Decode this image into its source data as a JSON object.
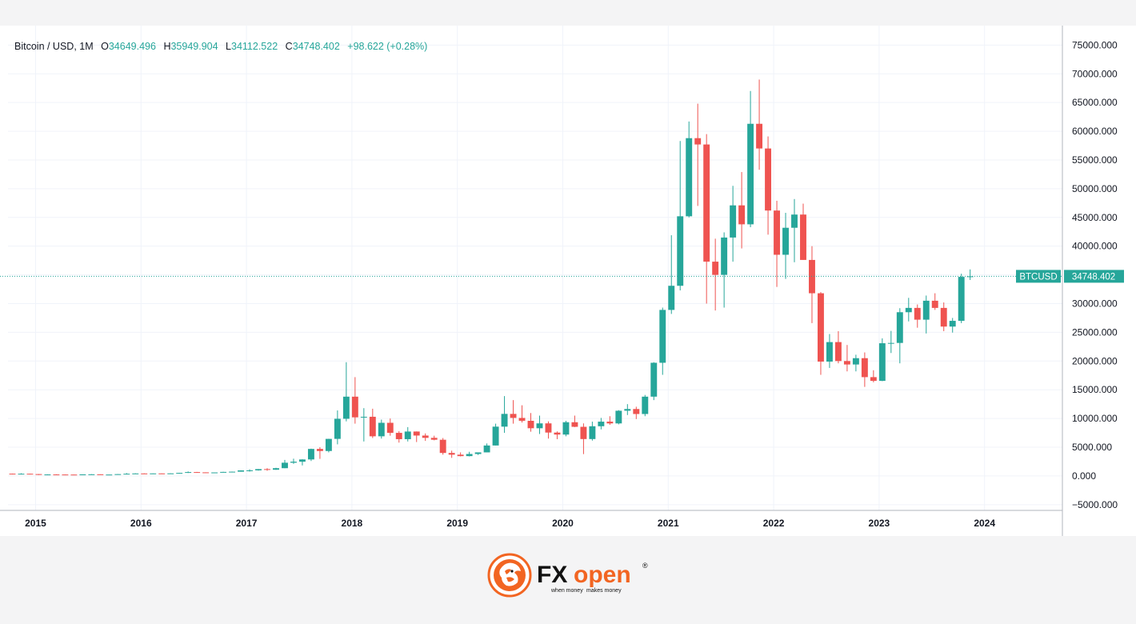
{
  "legend": {
    "symbol": "Bitcoin / USD, 1M",
    "o_label": "O",
    "o_value": "34649.496",
    "h_label": "H",
    "h_value": "35949.904",
    "l_label": "L",
    "l_value": "34112.522",
    "c_label": "C",
    "c_value": "34748.402",
    "change": "+98.622 (+0.28%)"
  },
  "price_tag": {
    "symbol": "BTCUSD",
    "value": "34748.402"
  },
  "colors": {
    "up": "#26a69a",
    "down": "#ef5350",
    "grid": "#f0f3fa",
    "axis_text": "#131722",
    "tag_bg": "#26a69a",
    "brand_orange": "#f26522",
    "brand_black": "#111111"
  },
  "brand": {
    "name_part1": "FX",
    "name_part2": "open",
    "registered": "®",
    "tagline_1": "when money",
    "tagline_2": "makes money",
    "icon": "lion-head-logo-icon"
  },
  "chart_data": {
    "type": "candlestick",
    "title": "",
    "symbol": "Bitcoin / USD",
    "interval": "1M",
    "last_price": 34748.402,
    "grid": true,
    "y_axis": {
      "position": "right",
      "ylim": [
        -6000,
        77000
      ],
      "ticks": [
        -5000,
        0,
        5000,
        10000,
        15000,
        20000,
        25000,
        30000,
        35000,
        40000,
        45000,
        50000,
        55000,
        60000,
        65000,
        70000,
        75000
      ],
      "tick_labels": [
        "−5000.000",
        "0.000",
        "5000.000",
        "10000.000",
        "15000.000",
        "20000.000",
        "25000.000",
        "30000.000",
        "35000.000",
        "40000.000",
        "45000.000",
        "50000.000",
        "55000.000",
        "60000.000",
        "65000.000",
        "70000.000",
        "75000.000"
      ]
    },
    "x_axis": {
      "start": "2014-10",
      "end": "2024-09",
      "tick_labels": [
        "2015",
        "2016",
        "2017",
        "2018",
        "2019",
        "2020",
        "2021",
        "2022",
        "2023",
        "2024"
      ]
    },
    "candles": [
      [
        "2014-10",
        390,
        410,
        300,
        330
      ],
      [
        "2014-11",
        330,
        460,
        310,
        380
      ],
      [
        "2014-12",
        380,
        390,
        300,
        320
      ],
      [
        "2015-01",
        320,
        330,
        160,
        220
      ],
      [
        "2015-02",
        220,
        280,
        210,
        255
      ],
      [
        "2015-03",
        255,
        300,
        240,
        245
      ],
      [
        "2015-04",
        245,
        260,
        215,
        235
      ],
      [
        "2015-05",
        235,
        250,
        225,
        230
      ],
      [
        "2015-06",
        230,
        270,
        220,
        265
      ],
      [
        "2015-07",
        265,
        315,
        255,
        285
      ],
      [
        "2015-08",
        285,
        290,
        200,
        230
      ],
      [
        "2015-09",
        230,
        245,
        225,
        237
      ],
      [
        "2015-10",
        237,
        330,
        235,
        315
      ],
      [
        "2015-11",
        315,
        500,
        300,
        378
      ],
      [
        "2015-12",
        378,
        465,
        350,
        430
      ],
      [
        "2016-01",
        430,
        460,
        360,
        368
      ],
      [
        "2016-02",
        368,
        440,
        365,
        437
      ],
      [
        "2016-03",
        437,
        440,
        400,
        416
      ],
      [
        "2016-04",
        416,
        470,
        415,
        448
      ],
      [
        "2016-05",
        448,
        550,
        440,
        530
      ],
      [
        "2016-06",
        530,
        780,
        520,
        670
      ],
      [
        "2016-07",
        670,
        700,
        600,
        624
      ],
      [
        "2016-08",
        624,
        630,
        540,
        575
      ],
      [
        "2016-09",
        575,
        615,
        570,
        610
      ],
      [
        "2016-10",
        610,
        720,
        605,
        700
      ],
      [
        "2016-11",
        700,
        760,
        690,
        742
      ],
      [
        "2016-12",
        742,
        980,
        740,
        963
      ],
      [
        "2017-01",
        963,
        1150,
        750,
        970
      ],
      [
        "2017-02",
        970,
        1200,
        920,
        1190
      ],
      [
        "2017-03",
        1190,
        1350,
        900,
        1080
      ],
      [
        "2017-04",
        1080,
        1420,
        1060,
        1350
      ],
      [
        "2017-05",
        1350,
        2790,
        1340,
        2300
      ],
      [
        "2017-06",
        2300,
        3000,
        2100,
        2480
      ],
      [
        "2017-07",
        2480,
        2900,
        1830,
        2870
      ],
      [
        "2017-08",
        2870,
        4750,
        2600,
        4700
      ],
      [
        "2017-09",
        4700,
        5000,
        2970,
        4340
      ],
      [
        "2017-10",
        4340,
        6470,
        4100,
        6450
      ],
      [
        "2017-11",
        6450,
        11400,
        5500,
        9950
      ],
      [
        "2017-12",
        9950,
        19800,
        9500,
        13800
      ],
      [
        "2018-01",
        13800,
        17200,
        9100,
        10200
      ],
      [
        "2018-02",
        10200,
        11800,
        6000,
        10300
      ],
      [
        "2018-03",
        10300,
        11700,
        6600,
        6900
      ],
      [
        "2018-04",
        6900,
        9800,
        6500,
        9250
      ],
      [
        "2018-05",
        9250,
        10000,
        7000,
        7500
      ],
      [
        "2018-06",
        7500,
        7800,
        5800,
        6400
      ],
      [
        "2018-07",
        6400,
        8500,
        6000,
        7730
      ],
      [
        "2018-08",
        7730,
        7750,
        5900,
        7030
      ],
      [
        "2018-09",
        7030,
        7400,
        6100,
        6630
      ],
      [
        "2018-10",
        6630,
        7000,
        6200,
        6300
      ],
      [
        "2018-11",
        6300,
        6600,
        3700,
        4000
      ],
      [
        "2018-12",
        4000,
        4400,
        3150,
        3700
      ],
      [
        "2019-01",
        3700,
        4100,
        3400,
        3450
      ],
      [
        "2019-02",
        3450,
        4200,
        3400,
        3820
      ],
      [
        "2019-03",
        3820,
        4100,
        3650,
        4100
      ],
      [
        "2019-04",
        4100,
        5650,
        4100,
        5300
      ],
      [
        "2019-05",
        5300,
        9100,
        5300,
        8580
      ],
      [
        "2019-06",
        8580,
        13900,
        7500,
        10800
      ],
      [
        "2019-07",
        10800,
        13200,
        9100,
        10100
      ],
      [
        "2019-08",
        10100,
        12300,
        9300,
        9600
      ],
      [
        "2019-09",
        9600,
        10950,
        7700,
        8300
      ],
      [
        "2019-10",
        8300,
        10500,
        7300,
        9150
      ],
      [
        "2019-11",
        9150,
        9500,
        6500,
        7550
      ],
      [
        "2019-12",
        7550,
        7750,
        6400,
        7200
      ],
      [
        "2020-01",
        7200,
        9600,
        6900,
        9350
      ],
      [
        "2020-02",
        9350,
        10500,
        8500,
        8550
      ],
      [
        "2020-03",
        8550,
        9150,
        3800,
        6420
      ],
      [
        "2020-04",
        6420,
        9450,
        6150,
        8650
      ],
      [
        "2020-05",
        8650,
        10100,
        8100,
        9450
      ],
      [
        "2020-06",
        9450,
        10400,
        8900,
        9140
      ],
      [
        "2020-07",
        9140,
        11450,
        8980,
        11350
      ],
      [
        "2020-08",
        11350,
        12500,
        10600,
        11650
      ],
      [
        "2020-09",
        11650,
        12050,
        9900,
        10780
      ],
      [
        "2020-10",
        10780,
        14100,
        10400,
        13800
      ],
      [
        "2020-11",
        13800,
        19800,
        13200,
        19700
      ],
      [
        "2020-12",
        19700,
        29300,
        17600,
        28900
      ],
      [
        "2021-01",
        28900,
        41900,
        28200,
        33100
      ],
      [
        "2021-02",
        33100,
        58300,
        32300,
        45200
      ],
      [
        "2021-03",
        45200,
        61700,
        45000,
        58800
      ],
      [
        "2021-04",
        58800,
        64800,
        47000,
        57700
      ],
      [
        "2021-05",
        57700,
        59500,
        30000,
        37300
      ],
      [
        "2021-06",
        37300,
        41300,
        28800,
        35000
      ],
      [
        "2021-07",
        35000,
        42400,
        29300,
        41500
      ],
      [
        "2021-08",
        41500,
        50500,
        37300,
        47100
      ],
      [
        "2021-09",
        47100,
        52900,
        39600,
        43800
      ],
      [
        "2021-10",
        43800,
        67000,
        43300,
        61300
      ],
      [
        "2021-11",
        61300,
        69000,
        53300,
        57000
      ],
      [
        "2021-12",
        57000,
        59100,
        42000,
        46200
      ],
      [
        "2022-01",
        46200,
        47900,
        32900,
        38500
      ],
      [
        "2022-02",
        38500,
        45800,
        34300,
        43200
      ],
      [
        "2022-03",
        43200,
        48200,
        37200,
        45500
      ],
      [
        "2022-04",
        45500,
        47400,
        37600,
        37600
      ],
      [
        "2022-05",
        37600,
        40000,
        26600,
        31800
      ],
      [
        "2022-06",
        31800,
        32000,
        17600,
        19900
      ],
      [
        "2022-07",
        19900,
        24700,
        18800,
        23300
      ],
      [
        "2022-08",
        23300,
        25200,
        19600,
        20000
      ],
      [
        "2022-09",
        20000,
        22800,
        18200,
        19400
      ],
      [
        "2022-10",
        19400,
        21100,
        18200,
        20500
      ],
      [
        "2022-11",
        20500,
        21500,
        15500,
        17200
      ],
      [
        "2022-12",
        17200,
        18400,
        16300,
        16550
      ],
      [
        "2023-01",
        16550,
        23950,
        16500,
        23100
      ],
      [
        "2023-02",
        23100,
        25250,
        21400,
        23150
      ],
      [
        "2023-03",
        23150,
        29200,
        19600,
        28500
      ],
      [
        "2023-04",
        28500,
        31000,
        26900,
        29250
      ],
      [
        "2023-05",
        29250,
        29850,
        25800,
        27200
      ],
      [
        "2023-06",
        27200,
        31400,
        24800,
        30500
      ],
      [
        "2023-07",
        30500,
        31800,
        28900,
        29250
      ],
      [
        "2023-08",
        29250,
        30200,
        25200,
        26000
      ],
      [
        "2023-09",
        26000,
        27500,
        24950,
        27000
      ],
      [
        "2023-10",
        27000,
        35200,
        26600,
        34650
      ],
      [
        "2023-11",
        34649.496,
        35949.904,
        34112.522,
        34748.402
      ]
    ]
  }
}
